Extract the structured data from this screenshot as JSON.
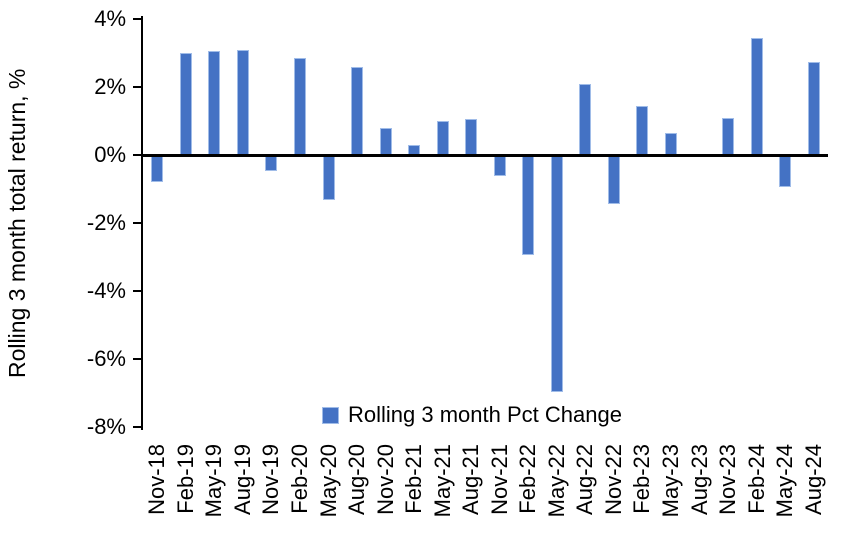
{
  "chart_data": {
    "type": "bar",
    "title": "",
    "xlabel": "",
    "ylabel": "Rolling 3 month total return, %",
    "categories": [
      "Nov-18",
      "Feb-19",
      "May-19",
      "Aug-19",
      "Nov-19",
      "Feb-20",
      "May-20",
      "Aug-20",
      "Nov-20",
      "Feb-21",
      "May-21",
      "Aug-21",
      "Nov-21",
      "Feb-22",
      "May-22",
      "Aug-22",
      "Nov-22",
      "Feb-23",
      "May-23",
      "Aug-23",
      "Nov-23",
      "Feb-24",
      "May-24",
      "Aug-24"
    ],
    "values": [
      -0.75,
      3.0,
      3.05,
      3.1,
      -0.45,
      2.85,
      -1.3,
      2.6,
      0.8,
      0.3,
      1.0,
      1.05,
      -0.6,
      -2.9,
      -6.95,
      2.1,
      -1.4,
      1.45,
      0.65,
      0.0,
      1.1,
      3.45,
      -0.9,
      2.75
    ],
    "ylim": [
      -8,
      4
    ],
    "ytick_values": [
      4,
      2,
      0,
      -2,
      -4,
      -6,
      -8
    ],
    "ytick_labels": [
      "4%",
      "2%",
      "0%",
      "-2%",
      "-4%",
      "-6%",
      "-8%"
    ],
    "grid": false,
    "legend": {
      "label": "Rolling 3 month Pct Change",
      "position": "bottom-center",
      "marker": "square"
    },
    "colors": {
      "bar": "#4472C4",
      "bar_edge": "#A0BCE8",
      "axis": "#000000",
      "text": "#000000",
      "background": "#FFFFFF"
    }
  }
}
